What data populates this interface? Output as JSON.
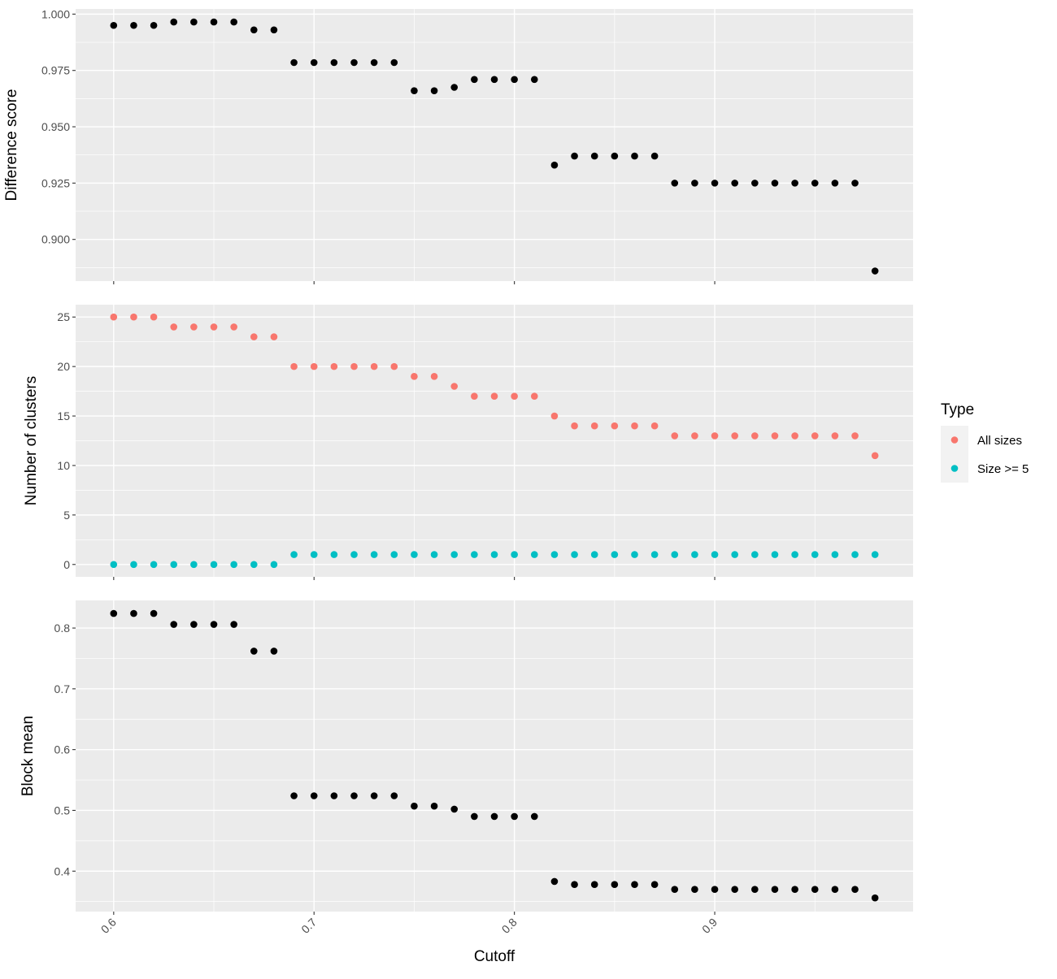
{
  "chart_data": {
    "type": "scatter",
    "layout": "faceted-vertical",
    "shared_x": {
      "label": "Cutoff",
      "lim": [
        0.581,
        0.999
      ],
      "ticks": [
        0.6,
        0.7,
        0.8,
        0.9
      ],
      "tick_labels": [
        "0.6",
        "0.7",
        "0.8",
        "0.9"
      ],
      "tick_label_rotation": -45
    },
    "grid": true,
    "legend": {
      "title": "Type",
      "placement": "right",
      "entries": [
        {
          "label": "All sizes",
          "color": "#F8766D"
        },
        {
          "label": "Size >= 5",
          "color": "#00BFC4"
        }
      ]
    },
    "panels": [
      {
        "ylabel": "Difference score",
        "ylim": [
          0.8815,
          1.0023
        ],
        "yticks": [
          0.9,
          0.925,
          0.95,
          0.975,
          1.0
        ],
        "ytick_labels": [
          "0.900",
          "0.925",
          "0.950",
          "0.975",
          "1.000"
        ],
        "series": [
          {
            "color": "#000000",
            "x": [
              0.6,
              0.61,
              0.62,
              0.63,
              0.64,
              0.65,
              0.66,
              0.67,
              0.68,
              0.69,
              0.7,
              0.71,
              0.72,
              0.73,
              0.74,
              0.75,
              0.76,
              0.77,
              0.78,
              0.79,
              0.8,
              0.81,
              0.82,
              0.83,
              0.84,
              0.85,
              0.86,
              0.87,
              0.88,
              0.89,
              0.9,
              0.91,
              0.92,
              0.93,
              0.94,
              0.95,
              0.96,
              0.97,
              0.98
            ],
            "y": [
              0.995,
              0.995,
              0.995,
              0.9965,
              0.9965,
              0.9965,
              0.9965,
              0.993,
              0.993,
              0.9785,
              0.9785,
              0.9785,
              0.9785,
              0.9785,
              0.9785,
              0.966,
              0.966,
              0.9675,
              0.971,
              0.971,
              0.971,
              0.971,
              0.933,
              0.937,
              0.937,
              0.937,
              0.937,
              0.937,
              0.925,
              0.925,
              0.925,
              0.925,
              0.925,
              0.925,
              0.925,
              0.925,
              0.925,
              0.925,
              0.886
            ]
          }
        ]
      },
      {
        "ylabel": "Number of clusters",
        "ylim": [
          -1.25,
          26.25
        ],
        "yticks": [
          0,
          5,
          10,
          15,
          20,
          25
        ],
        "ytick_labels": [
          "0",
          "5",
          "10",
          "15",
          "20",
          "25"
        ],
        "series": [
          {
            "name": "All sizes",
            "color": "#F8766D",
            "x": [
              0.6,
              0.61,
              0.62,
              0.63,
              0.64,
              0.65,
              0.66,
              0.67,
              0.68,
              0.69,
              0.7,
              0.71,
              0.72,
              0.73,
              0.74,
              0.75,
              0.76,
              0.77,
              0.78,
              0.79,
              0.8,
              0.81,
              0.82,
              0.83,
              0.84,
              0.85,
              0.86,
              0.87,
              0.88,
              0.89,
              0.9,
              0.91,
              0.92,
              0.93,
              0.94,
              0.95,
              0.96,
              0.97,
              0.98
            ],
            "y": [
              25,
              25,
              25,
              24,
              24,
              24,
              24,
              23,
              23,
              20,
              20,
              20,
              20,
              20,
              20,
              19,
              19,
              18,
              17,
              17,
              17,
              17,
              15,
              14,
              14,
              14,
              14,
              14,
              13,
              13,
              13,
              13,
              13,
              13,
              13,
              13,
              13,
              13,
              11
            ]
          },
          {
            "name": "Size >= 5",
            "color": "#00BFC4",
            "x": [
              0.6,
              0.61,
              0.62,
              0.63,
              0.64,
              0.65,
              0.66,
              0.67,
              0.68,
              0.69,
              0.7,
              0.71,
              0.72,
              0.73,
              0.74,
              0.75,
              0.76,
              0.77,
              0.78,
              0.79,
              0.8,
              0.81,
              0.82,
              0.83,
              0.84,
              0.85,
              0.86,
              0.87,
              0.88,
              0.89,
              0.9,
              0.91,
              0.92,
              0.93,
              0.94,
              0.95,
              0.96,
              0.97,
              0.98
            ],
            "y": [
              0,
              0,
              0,
              0,
              0,
              0,
              0,
              0,
              0,
              1,
              1,
              1,
              1,
              1,
              1,
              1,
              1,
              1,
              1,
              1,
              1,
              1,
              1,
              1,
              1,
              1,
              1,
              1,
              1,
              1,
              1,
              1,
              1,
              1,
              1,
              1,
              1,
              1,
              1
            ]
          }
        ]
      },
      {
        "ylabel": "Block mean",
        "ylim": [
          0.3335,
          0.8455
        ],
        "yticks": [
          0.4,
          0.5,
          0.6,
          0.7,
          0.8
        ],
        "ytick_labels": [
          "0.4",
          "0.5",
          "0.6",
          "0.7",
          "0.8"
        ],
        "series": [
          {
            "color": "#000000",
            "x": [
              0.6,
              0.61,
              0.62,
              0.63,
              0.64,
              0.65,
              0.66,
              0.67,
              0.68,
              0.69,
              0.7,
              0.71,
              0.72,
              0.73,
              0.74,
              0.75,
              0.76,
              0.77,
              0.78,
              0.79,
              0.8,
              0.81,
              0.82,
              0.83,
              0.84,
              0.85,
              0.86,
              0.87,
              0.88,
              0.89,
              0.9,
              0.91,
              0.92,
              0.93,
              0.94,
              0.95,
              0.96,
              0.97,
              0.98
            ],
            "y": [
              0.824,
              0.824,
              0.824,
              0.806,
              0.806,
              0.806,
              0.806,
              0.762,
              0.762,
              0.524,
              0.524,
              0.524,
              0.524,
              0.524,
              0.524,
              0.507,
              0.507,
              0.502,
              0.49,
              0.49,
              0.49,
              0.49,
              0.383,
              0.378,
              0.378,
              0.378,
              0.378,
              0.378,
              0.37,
              0.37,
              0.37,
              0.37,
              0.37,
              0.37,
              0.37,
              0.37,
              0.37,
              0.37,
              0.356
            ]
          }
        ]
      }
    ]
  }
}
